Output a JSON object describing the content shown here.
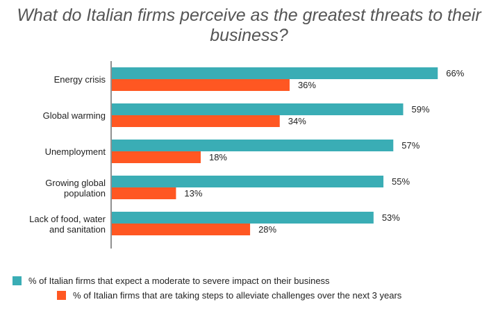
{
  "chart_data": {
    "type": "bar",
    "orientation": "horizontal",
    "title": "What do Italian firms perceive as the greatest threats to their business?",
    "categories": [
      [
        "Energy crisis"
      ],
      [
        "Global warming"
      ],
      [
        "Unemployment"
      ],
      [
        "Growing global",
        "population"
      ],
      [
        "Lack of food, water",
        "and sanitation"
      ]
    ],
    "series": [
      {
        "name": "% of Italian firms that expect a moderate to severe impact on their business",
        "color": "#3AADB5",
        "values": [
          66,
          59,
          57,
          55,
          53
        ],
        "labels": [
          "66%",
          "59%",
          "57%",
          "55%",
          "53%"
        ]
      },
      {
        "name": "% of Italian firms that are taking steps to alleviate challenges over the next 3 years",
        "color": "#FF5722",
        "values": [
          36,
          34,
          18,
          13,
          28
        ],
        "labels": [
          "36%",
          "34%",
          "18%",
          "13%",
          "28%"
        ]
      }
    ],
    "xlim": [
      0,
      100
    ],
    "grid": false,
    "legend_position": "bottom-left"
  }
}
